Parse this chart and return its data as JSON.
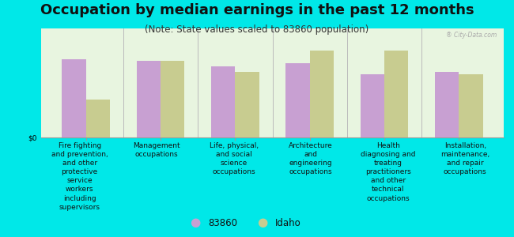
{
  "title": "Occupation by median earnings in the past 12 months",
  "subtitle": "(Note: State values scaled to 83860 population)",
  "categories": [
    "Fire fighting\nand prevention,\nand other\nprotective\nservice\nworkers\nincluding\nsupervisors",
    "Management\noccupations",
    "Life, physical,\nand social\nscience\noccupations",
    "Architecture\nand\nengineering\noccupations",
    "Health\ndiagnosing and\ntreating\npractitioners\nand other\ntechnical\noccupations",
    "Installation,\nmaintenance,\nand repair\noccupations"
  ],
  "values_83860": [
    0.72,
    0.7,
    0.65,
    0.68,
    0.58,
    0.6
  ],
  "values_idaho": [
    0.35,
    0.7,
    0.6,
    0.8,
    0.8,
    0.58
  ],
  "color_83860": "#c8a0d2",
  "color_idaho": "#c8cc90",
  "background_plot": "#e8f5e0",
  "background_fig": "#00e8e8",
  "ylabel": "$0",
  "legend_83860": "83860",
  "legend_idaho": "Idaho",
  "bar_width": 0.32,
  "ylim": [
    0,
    1.0
  ],
  "title_fontsize": 13,
  "subtitle_fontsize": 8.5,
  "tick_fontsize": 6.5,
  "legend_fontsize": 8.5,
  "watermark": "City-Data.com"
}
